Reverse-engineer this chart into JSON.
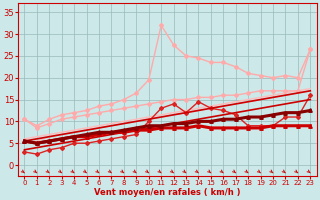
{
  "x": [
    0,
    1,
    2,
    3,
    4,
    5,
    6,
    7,
    8,
    9,
    10,
    11,
    12,
    13,
    14,
    15,
    16,
    17,
    18,
    19,
    20,
    21,
    22,
    23
  ],
  "lines": [
    {
      "comment": "lightest pink - upper straight diagonal",
      "y": [
        6.0,
        6.5,
        7.0,
        7.5,
        8.0,
        8.5,
        9.0,
        9.5,
        10.0,
        10.5,
        11.0,
        11.5,
        12.0,
        12.5,
        13.0,
        13.5,
        14.0,
        14.5,
        15.0,
        15.5,
        16.0,
        16.5,
        17.0,
        17.5
      ],
      "color": "#ffbbbb",
      "linewidth": 1.0,
      "marker": null,
      "markersize": 0,
      "zorder": 2
    },
    {
      "comment": "light pink - upper straight diagonal 2",
      "y": [
        5.0,
        5.5,
        6.5,
        7.0,
        7.5,
        8.0,
        8.5,
        9.0,
        9.5,
        10.0,
        10.5,
        11.0,
        11.5,
        12.0,
        12.5,
        13.0,
        13.5,
        14.0,
        14.5,
        15.0,
        15.5,
        16.0,
        16.5,
        17.0
      ],
      "color": "#ffbbbb",
      "linewidth": 1.0,
      "marker": null,
      "markersize": 0,
      "zorder": 2
    },
    {
      "comment": "lightest pink wiggly - top line with peak at 12",
      "y": [
        10.5,
        9.0,
        10.5,
        11.5,
        12.0,
        12.5,
        13.5,
        14.0,
        15.0,
        16.5,
        19.5,
        32.0,
        27.5,
        25.0,
        24.5,
        23.5,
        23.5,
        22.5,
        21.0,
        20.5,
        20.0,
        20.5,
        20.0,
        26.5
      ],
      "color": "#ffaaaa",
      "linewidth": 1.0,
      "marker": "D",
      "markersize": 2.0,
      "zorder": 3
    },
    {
      "comment": "medium pink wiggly - second line",
      "y": [
        10.5,
        8.5,
        9.5,
        10.5,
        11.0,
        11.5,
        12.0,
        12.5,
        13.0,
        13.5,
        14.0,
        14.5,
        15.0,
        15.0,
        15.5,
        15.5,
        16.0,
        16.0,
        16.5,
        17.0,
        17.0,
        17.0,
        17.0,
        26.5
      ],
      "color": "#ffaaaa",
      "linewidth": 1.0,
      "marker": "D",
      "markersize": 2.0,
      "zorder": 3
    },
    {
      "comment": "darker red wiggly - middle line with peaks",
      "y": [
        3.0,
        2.5,
        3.5,
        4.0,
        5.0,
        5.0,
        5.5,
        6.0,
        6.5,
        7.0,
        10.0,
        13.0,
        14.0,
        12.0,
        14.5,
        13.0,
        12.5,
        11.5,
        9.0,
        9.0,
        9.0,
        11.0,
        11.0,
        16.0
      ],
      "color": "#dd2222",
      "linewidth": 1.0,
      "marker": "D",
      "markersize": 2.0,
      "zorder": 4
    },
    {
      "comment": "red straight diagonal lower",
      "y": [
        3.5,
        4.0,
        4.5,
        5.0,
        5.5,
        6.0,
        6.5,
        7.0,
        7.5,
        8.0,
        8.5,
        9.0,
        9.5,
        10.0,
        10.5,
        11.0,
        11.5,
        12.0,
        12.5,
        13.0,
        13.5,
        14.0,
        14.5,
        15.0
      ],
      "color": "#cc0000",
      "linewidth": 1.2,
      "marker": null,
      "markersize": 0,
      "zorder": 4
    },
    {
      "comment": "red straight diagonal upper",
      "y": [
        5.5,
        6.0,
        6.5,
        7.0,
        7.5,
        8.0,
        8.5,
        9.0,
        9.5,
        10.0,
        10.5,
        11.0,
        11.5,
        12.0,
        12.5,
        13.0,
        13.5,
        14.0,
        14.5,
        15.0,
        15.5,
        16.0,
        16.5,
        17.0
      ],
      "color": "#cc0000",
      "linewidth": 1.2,
      "marker": null,
      "markersize": 0,
      "zorder": 4
    },
    {
      "comment": "dark red thick - flat/slow rising line bottom",
      "y": [
        5.5,
        5.0,
        5.5,
        6.0,
        6.5,
        6.5,
        7.0,
        7.5,
        7.5,
        8.0,
        8.0,
        8.5,
        8.5,
        8.5,
        9.0,
        8.5,
        8.5,
        8.5,
        8.5,
        8.5,
        9.0,
        9.0,
        9.0,
        9.0
      ],
      "color": "#cc0000",
      "linewidth": 2.2,
      "marker": "^",
      "markersize": 2.5,
      "zorder": 5
    },
    {
      "comment": "darkest red thick - lowest rising line",
      "y": [
        5.5,
        5.0,
        5.5,
        6.0,
        6.5,
        7.0,
        7.5,
        7.5,
        8.0,
        8.5,
        9.0,
        9.0,
        9.5,
        9.5,
        10.0,
        10.0,
        10.5,
        10.5,
        11.0,
        11.0,
        11.5,
        12.0,
        12.0,
        12.5
      ],
      "color": "#880000",
      "linewidth": 2.2,
      "marker": "^",
      "markersize": 2.5,
      "zorder": 6
    }
  ],
  "xlabel": "Vent moyen/en rafales ( km/h )",
  "xlim": [
    -0.5,
    23.5
  ],
  "ylim": [
    -2.5,
    37
  ],
  "yticks": [
    0,
    5,
    10,
    15,
    20,
    25,
    30,
    35
  ],
  "xticks": [
    0,
    1,
    2,
    3,
    4,
    5,
    6,
    7,
    8,
    9,
    10,
    11,
    12,
    13,
    14,
    15,
    16,
    17,
    18,
    19,
    20,
    21,
    22,
    23
  ],
  "bg_color": "#cce8e8",
  "grid_color": "#99bbbb",
  "tick_color": "#cc0000",
  "label_color": "#cc0000",
  "arrow_color": "#cc0000"
}
